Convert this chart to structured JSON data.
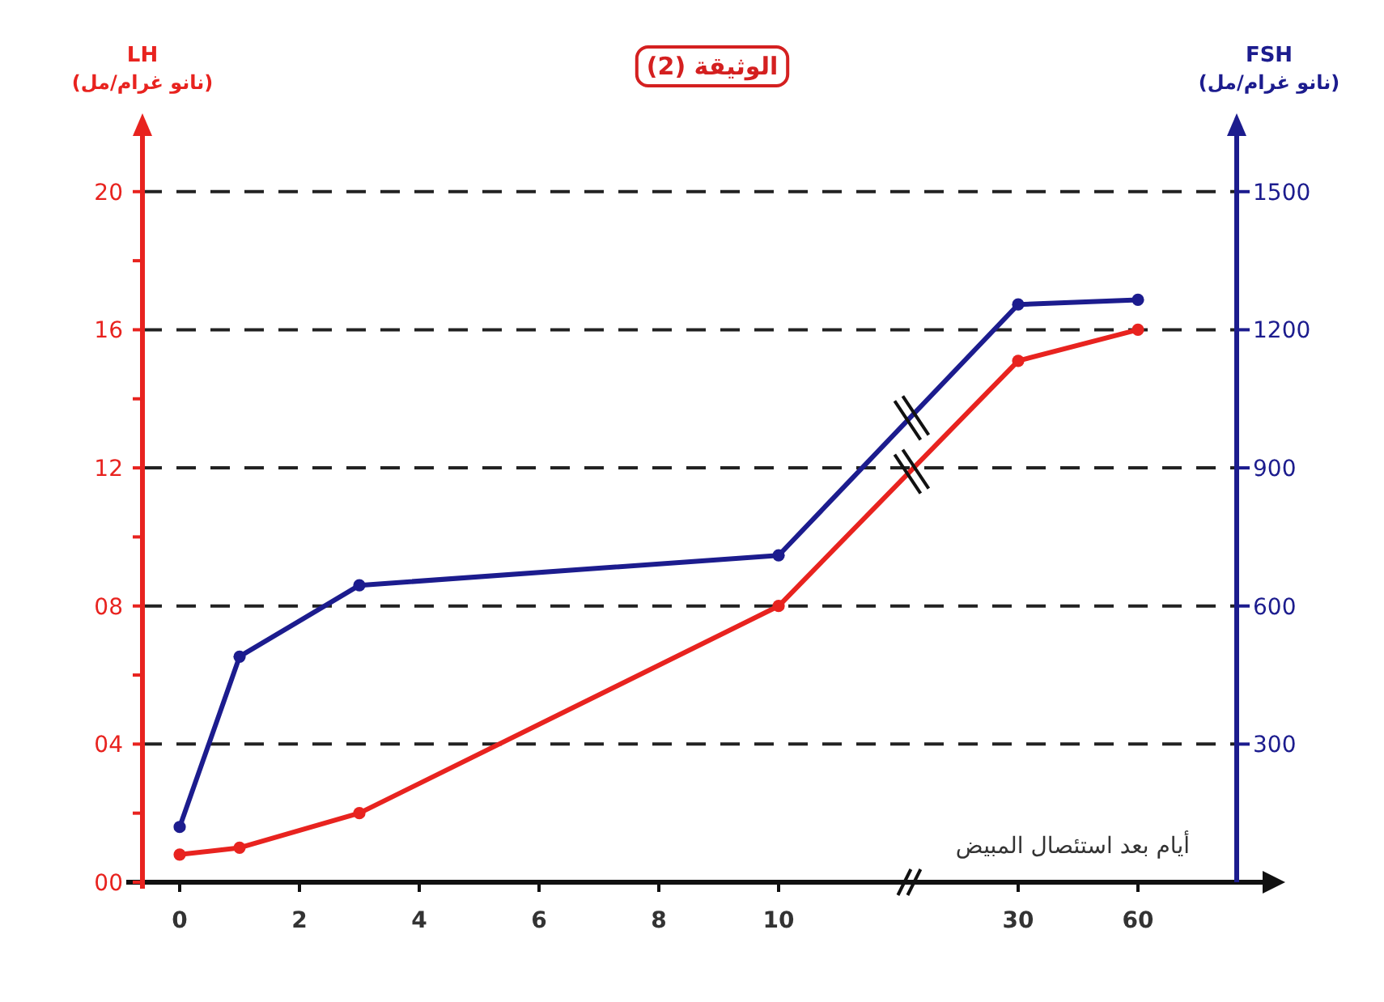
{
  "chart_data": {
    "type": "line",
    "title": "الوثيقة (2)",
    "xlabel": "أيام بعد استئصال المبيض",
    "ylabel": "LH\n(نانو غرام/مل)",
    "y2label": "FSH\n(نانو غرام/مل)",
    "categories": [
      "0",
      null,
      "2",
      null,
      "4",
      null,
      "6",
      null,
      "8",
      null,
      "10",
      null,
      null,
      null,
      "30",
      null,
      "60"
    ],
    "series": [
      {
        "color": "#e8231f",
        "values": [
          0.8,
          1.0,
          null,
          2.0,
          null,
          null,
          null,
          null,
          null,
          null,
          8.0,
          null,
          null,
          null,
          15.1,
          null,
          16.0
        ]
      },
      {
        "color": "#1c1c8e",
        "axis": "y2",
        "values": [
          120,
          490,
          null,
          645,
          null,
          null,
          null,
          null,
          null,
          null,
          710,
          null,
          null,
          null,
          1255,
          null,
          1265
        ]
      }
    ],
    "ylim": [
      0,
      21.8
    ],
    "yticks": [
      {
        "value": 0,
        "label": "00"
      },
      {
        "value": 2,
        "label": null
      },
      {
        "value": 4,
        "label": "04"
      },
      {
        "value": 6,
        "label": null
      },
      {
        "value": 8,
        "label": "08"
      },
      {
        "value": 10,
        "label": null
      },
      {
        "value": 12,
        "label": "12"
      },
      {
        "value": 14,
        "label": null
      },
      {
        "value": 16,
        "label": "16"
      },
      {
        "value": 18,
        "label": null
      },
      {
        "value": 20,
        "label": "20"
      }
    ],
    "y2lim": [
      0,
      1635
    ],
    "y2ticks": [
      300,
      600,
      900,
      1200,
      1500
    ],
    "grid": "y",
    "marker": "circle",
    "line_style": "solid"
  }
}
